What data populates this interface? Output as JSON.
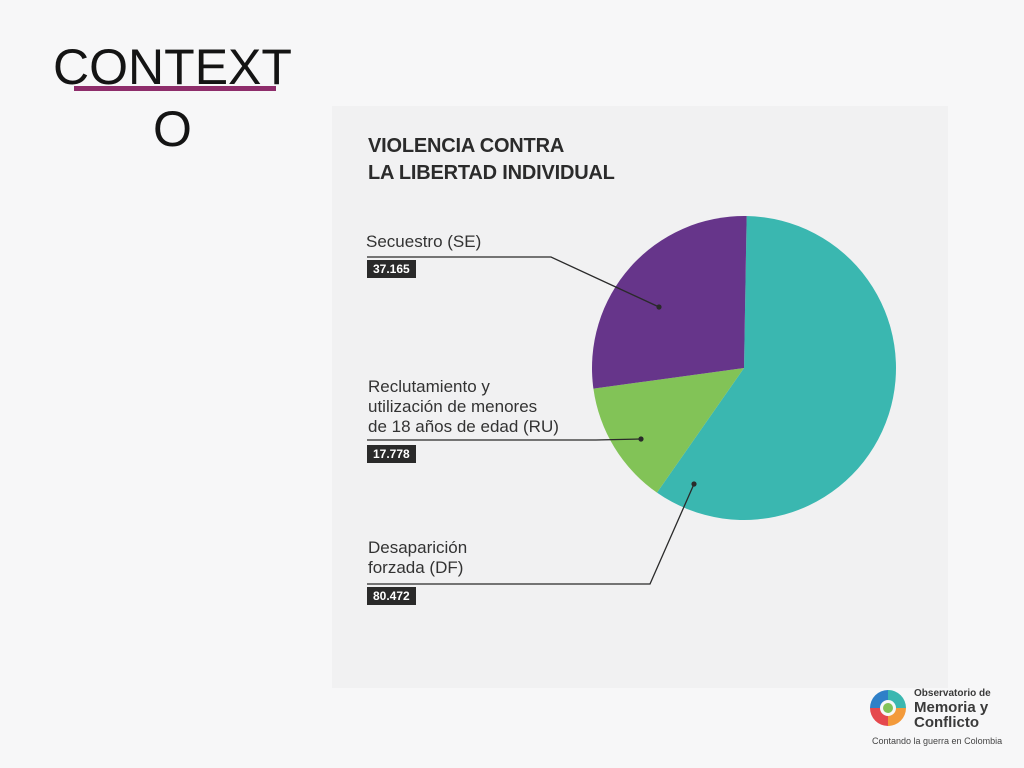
{
  "slide": {
    "title_line1": "CONTEXT",
    "title_line2": "O",
    "accent_color": "#8e2d6b"
  },
  "chart_data": {
    "type": "pie",
    "title_line1": "VIOLENCIA CONTRA",
    "title_line2": "LA LIBERTAD INDIVIDUAL",
    "slices": [
      {
        "code": "SE",
        "label_lines": [
          "Secuestro (SE)"
        ],
        "value_label": "37.165",
        "value": 37165,
        "color": "#66358a"
      },
      {
        "code": "RU",
        "label_lines": [
          "Reclutamiento y",
          "utilización de menores",
          "de 18 años de edad (RU)"
        ],
        "value_label": "17.778",
        "value": 17778,
        "color": "#82c357"
      },
      {
        "code": "DF",
        "label_lines": [
          "Desaparición",
          "forzada (DF)"
        ],
        "value_label": "80.472",
        "value": 80472,
        "color": "#3ab7b0"
      }
    ]
  },
  "logo": {
    "name_line1": "Observatorio de",
    "name_line2": "Memoria y",
    "name_line3": "Conflicto",
    "tagline": "Contando la guerra en Colombia",
    "icon": "observatorio-ring-logo-icon"
  }
}
